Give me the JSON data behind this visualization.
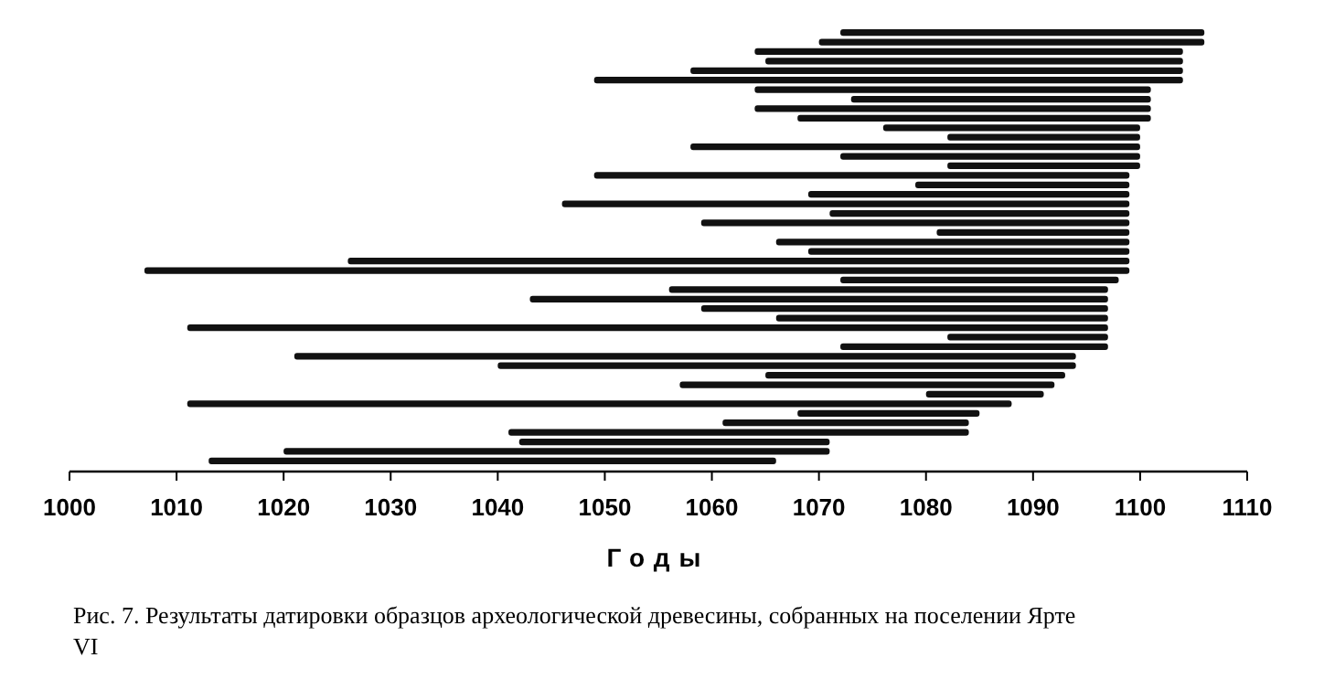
{
  "chart_data": {
    "type": "bar",
    "orientation": "horizontal",
    "xlabel": "Годы",
    "annotations": [
      "Рис. 7. Результаты датировки образцов археологической древесины, собранных на поселении Ярте VI"
    ],
    "categories": [
      null,
      null,
      null,
      null,
      null,
      null,
      null,
      null,
      null,
      null,
      null,
      null,
      null,
      null,
      null,
      null,
      null,
      null,
      null,
      null,
      null,
      null,
      null,
      null,
      null,
      null,
      null,
      null,
      null,
      null,
      null,
      null,
      null,
      null,
      null,
      null,
      null,
      null,
      null,
      null,
      null,
      null,
      null,
      null,
      null,
      null
    ],
    "base": [
      1072,
      1070,
      1064,
      1065,
      1058,
      1049,
      1064,
      1073,
      1064,
      1068,
      1076,
      1082,
      1058,
      1072,
      1082,
      1049,
      1079,
      1069,
      1046,
      1071,
      1059,
      1081,
      1066,
      1069,
      1026,
      1007,
      1072,
      1056,
      1043,
      1059,
      1066,
      1011,
      1082,
      1072,
      1021,
      1040,
      1065,
      1057,
      1080,
      1011,
      1068,
      1061,
      1041,
      1042,
      1020,
      1013
    ],
    "values": [
      34,
      36,
      40,
      39,
      46,
      55,
      37,
      28,
      37,
      33,
      24,
      18,
      42,
      28,
      18,
      50,
      20,
      30,
      53,
      28,
      40,
      18,
      33,
      30,
      73,
      92,
      26,
      41,
      54,
      38,
      31,
      86,
      15,
      25,
      73,
      54,
      28,
      35,
      11,
      77,
      17,
      23,
      43,
      29,
      51,
      53
    ],
    "color": "#111111",
    "xlim": [
      1000,
      1110
    ],
    "xticks": [
      1000,
      1010,
      1020,
      1030,
      1040,
      1050,
      1060,
      1070,
      1080,
      1090,
      1100,
      1110
    ],
    "tick_labels": "x",
    "grid": false
  }
}
